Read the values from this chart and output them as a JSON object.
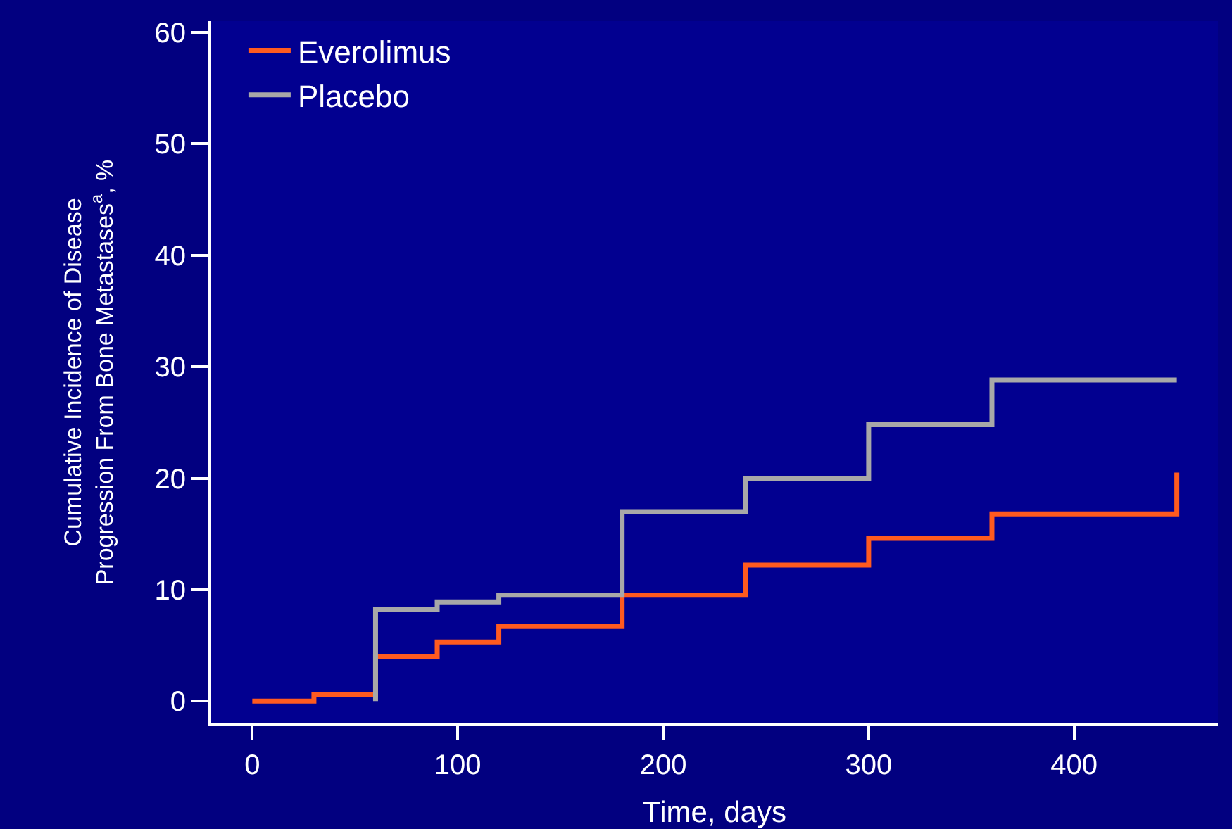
{
  "chart_data": {
    "type": "step",
    "xlabel": "Time, days",
    "ylabel": "Cumulative Incidence of Disease\nProgression From Bone Metastases$^{a}$, %",
    "series": [
      {
        "name": "Everolimus",
        "color": "#ff5a1f",
        "x": [
          0,
          30,
          60,
          90,
          120,
          180,
          240,
          300,
          360,
          450,
          450
        ],
        "values": [
          0,
          0.6,
          4,
          5.3,
          6.7,
          9.5,
          12.2,
          14.6,
          16.8,
          16.8,
          20.5
        ]
      },
      {
        "name": "Placebo",
        "color": "#a8a8a8",
        "x": [
          60,
          60,
          90,
          120,
          180,
          240,
          300,
          360,
          450
        ],
        "values": [
          0,
          8.2,
          8.9,
          9.5,
          17,
          20,
          24.8,
          28.8,
          28.8
        ]
      }
    ],
    "xlim": [
      -20,
      470
    ],
    "xticks": [
      0,
      100,
      200,
      300,
      400
    ],
    "ylim": [
      -2,
      61
    ],
    "yticks": [
      0,
      10,
      20,
      30,
      40,
      50,
      60
    ],
    "grid": false,
    "legend": "top left",
    "line_style": "solid",
    "marker": "none"
  }
}
